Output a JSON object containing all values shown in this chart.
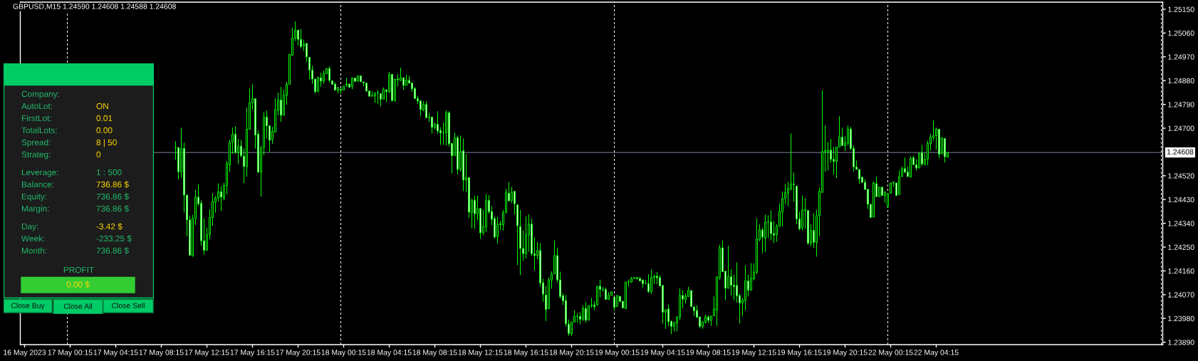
{
  "chart_data": [
    {
      "type": "candlestick",
      "title": "GBPUSD,M15 1.24590 1.24608 1.24588 1.24608",
      "color": "#00ff00",
      "categories": [
        null,
        "16 May 2023",
        null,
        null,
        null,
        null,
        null,
        null,
        null,
        null,
        null,
        null,
        null,
        null,
        null,
        null,
        null,
        "17 May 00:15",
        null,
        null,
        null,
        null,
        null,
        null,
        null,
        null,
        null,
        null,
        null,
        null,
        null,
        null,
        null,
        "17 May 04:15",
        null,
        null,
        null,
        null,
        null,
        null,
        null,
        null,
        null,
        null,
        null,
        null,
        null,
        null,
        null,
        "17 May 08:15",
        null,
        null,
        null,
        null,
        null,
        null,
        null,
        null,
        null,
        null,
        null,
        null,
        null,
        null,
        null,
        "17 May 12:15",
        null,
        null,
        null,
        null,
        null,
        null,
        null,
        null,
        null,
        null,
        null,
        null,
        null,
        null,
        null,
        "17 May 16:15",
        null,
        null,
        null,
        null,
        null,
        null,
        null,
        null,
        null,
        null,
        null,
        null,
        null,
        null,
        null,
        "17 May 20:15",
        null,
        null,
        null,
        null,
        null,
        null,
        null,
        null,
        null,
        null,
        null,
        null,
        null,
        null,
        null,
        "18 May 00:15",
        null,
        null,
        null,
        null,
        null,
        null,
        null,
        null,
        null,
        null,
        null,
        null,
        null,
        null,
        null,
        "18 May 04:15",
        null,
        null,
        null,
        null,
        null,
        null,
        null,
        null,
        null,
        null,
        null,
        null,
        null,
        null,
        null,
        "18 May 08:15",
        null,
        null,
        null,
        null,
        null,
        null,
        null,
        null,
        null,
        null,
        null,
        null,
        null,
        null,
        null,
        "18 May 12:15",
        null,
        null,
        null,
        null,
        null,
        null,
        null,
        null,
        null,
        null,
        null,
        null,
        null,
        null,
        null,
        "18 May 16:15",
        null,
        null,
        null,
        null,
        null,
        null,
        null,
        null,
        null,
        null,
        null,
        null,
        null,
        null,
        null,
        "18 May 20:15",
        null,
        null,
        null,
        null,
        null,
        null,
        null,
        null,
        null,
        null,
        null,
        null,
        null,
        null,
        null,
        "19 May 00:15",
        null,
        null,
        null,
        null,
        null,
        null,
        null,
        null,
        null,
        null,
        null,
        null,
        null,
        null,
        null,
        "19 May 04:15",
        null,
        null,
        null,
        null,
        null,
        null,
        null,
        null,
        null,
        null,
        null,
        null,
        null,
        null,
        null,
        "19 May 08:15",
        null,
        null,
        null,
        null,
        null,
        null,
        null,
        null,
        null,
        null,
        null,
        null,
        null,
        null,
        null,
        "19 May 12:15",
        null,
        null,
        null,
        null,
        null,
        null,
        null,
        null,
        null,
        null,
        null,
        null,
        null,
        null,
        null,
        "19 May 16:15",
        null,
        null,
        null,
        null,
        null,
        null,
        null,
        null,
        null,
        null,
        null,
        null,
        null,
        null,
        null,
        "19 May 20:15",
        null,
        null,
        null,
        null,
        null,
        null,
        null,
        null,
        null,
        null,
        null,
        null,
        null,
        null,
        null,
        "22 May 00:15",
        null,
        null,
        null,
        null,
        null,
        null,
        null,
        null,
        null,
        null,
        null,
        null,
        null,
        null,
        null,
        "22 May 04:15",
        null,
        null,
        null,
        null,
        null,
        null,
        null,
        null,
        null,
        null,
        null,
        null,
        null,
        null,
        null,
        null,
        null,
        null,
        null,
        null,
        null,
        null,
        null,
        null,
        null,
        null,
        null,
        null,
        null,
        null,
        null,
        null,
        null,
        null,
        null,
        null,
        null,
        null,
        null,
        null,
        null,
        null,
        null,
        null,
        null,
        null,
        null,
        null,
        null,
        null,
        null,
        null,
        null,
        null,
        null,
        null,
        null,
        null,
        null,
        null,
        null,
        null,
        null,
        null,
        null,
        null,
        null,
        null,
        null,
        null,
        null,
        null,
        null,
        null,
        null,
        null,
        null,
        null,
        null
      ],
      "ohlc": [
        null,
        null,
        null,
        null,
        null,
        null,
        null,
        null,
        null,
        null,
        null,
        null,
        null,
        null,
        null,
        null,
        null,
        null,
        null,
        null,
        null,
        null,
        null,
        null,
        null,
        null,
        null,
        null,
        null,
        null,
        null,
        null,
        null,
        null,
        null,
        null,
        null,
        null,
        null,
        null,
        null,
        null,
        null,
        null,
        null,
        null,
        null,
        null,
        null,
        null,
        null,
        null,
        null,
        null,
        [
          1.24627,
          1.24651,
          1.2458,
          1.24627
        ],
        [
          1.24627,
          1.2463,
          1.24506,
          1.24535
        ],
        [
          1.24535,
          1.24702,
          1.24513,
          1.24623
        ],
        [
          1.24623,
          1.24645,
          1.24381,
          1.24447
        ],
        [
          1.24447,
          1.24447,
          1.2429,
          1.24353
        ],
        [
          1.24353,
          1.24369,
          1.24216,
          1.24219
        ],
        [
          1.24216,
          1.24372,
          1.24214,
          1.24358
        ],
        [
          1.24358,
          1.24467,
          1.24333,
          1.24439
        ],
        [
          1.24439,
          1.24489,
          1.24405,
          1.24414
        ],
        [
          1.24416,
          1.24427,
          1.24255,
          1.24274
        ],
        [
          1.24274,
          1.24359,
          1.24222,
          1.24238
        ],
        [
          1.24238,
          1.24324,
          1.24236,
          1.24297
        ],
        [
          1.24297,
          1.24394,
          1.24279,
          1.24362
        ],
        [
          1.24362,
          1.24454,
          1.2433,
          1.24423
        ],
        [
          1.2442,
          1.24444,
          1.2438,
          1.24436
        ],
        [
          1.24436,
          1.24491,
          1.24423,
          1.24459
        ],
        [
          1.24459,
          1.24481,
          1.24387,
          1.24439
        ],
        [
          1.24436,
          1.24494,
          1.24427,
          1.24483
        ],
        [
          1.24482,
          1.24576,
          1.2445,
          1.24567
        ],
        [
          1.24561,
          1.24656,
          1.24535,
          1.24645
        ],
        [
          1.24647,
          1.24702,
          1.24603,
          1.24677
        ],
        [
          1.24677,
          1.24707,
          1.24603,
          1.24609
        ],
        [
          1.24609,
          1.24659,
          1.24565,
          1.24632
        ],
        [
          1.24632,
          1.24656,
          1.24589,
          1.24596
        ],
        [
          1.24594,
          1.24624,
          1.24492,
          1.24555
        ],
        [
          1.24555,
          1.24778,
          1.24517,
          1.24696
        ],
        [
          1.24696,
          1.2485,
          1.24694,
          1.24796
        ],
        [
          1.24796,
          1.24867,
          1.2477,
          1.24812
        ],
        [
          1.24812,
          1.24814,
          1.24623,
          1.24674
        ],
        [
          1.24677,
          1.24691,
          1.24529,
          1.24533
        ],
        [
          1.24533,
          1.24634,
          1.24441,
          1.24625
        ],
        [
          1.24627,
          1.24761,
          1.24598,
          1.24742
        ],
        [
          1.24742,
          1.24767,
          1.24661,
          1.24709
        ],
        [
          1.24709,
          1.24711,
          1.2461,
          1.24654
        ],
        [
          1.24657,
          1.24705,
          1.24641,
          1.24688
        ],
        [
          1.24685,
          1.24813,
          1.24685,
          1.24771
        ],
        [
          1.24768,
          1.24834,
          1.24749,
          1.24807
        ],
        [
          1.24807,
          1.24856,
          1.24724,
          1.24749
        ],
        [
          1.24749,
          1.24846,
          1.24747,
          1.24825
        ],
        [
          1.24825,
          1.24875,
          1.24789,
          1.24866
        ],
        [
          1.24866,
          1.24981,
          1.24862,
          1.24979
        ],
        [
          1.24976,
          1.2508,
          1.24973,
          1.25041
        ],
        [
          1.25041,
          1.25104,
          1.2503,
          1.25071
        ],
        [
          1.25071,
          1.25075,
          1.25013,
          1.25036
        ],
        [
          1.25036,
          1.25075,
          1.25003,
          1.25009
        ],
        [
          1.25011,
          1.25035,
          1.24992,
          1.25018
        ],
        [
          1.25021,
          1.25024,
          1.24951,
          1.2497
        ],
        [
          1.24968,
          1.24969,
          1.24886,
          1.2492
        ],
        [
          1.2492,
          1.24937,
          1.24867,
          1.24886
        ],
        [
          1.24886,
          1.2489,
          1.24832,
          1.24838
        ],
        [
          1.24838,
          1.24898,
          1.24838,
          1.24893
        ],
        [
          1.24891,
          1.2491,
          1.24857,
          1.24878
        ],
        [
          1.24878,
          1.24918,
          1.24868,
          1.24906
        ],
        [
          1.24906,
          1.24931,
          1.24902,
          1.24926
        ],
        [
          1.24926,
          1.24934,
          1.24873,
          1.24881
        ],
        [
          1.24879,
          1.24883,
          1.24865,
          1.24866
        ],
        [
          1.24867,
          1.24873,
          1.24843,
          1.24844
        ],
        [
          1.24844,
          1.24855,
          1.24832,
          1.24854
        ],
        [
          1.24848,
          1.24853,
          1.2483,
          1.24844
        ],
        [
          1.24844,
          1.24861,
          1.24844,
          1.24859
        ],
        [
          1.24863,
          1.24891,
          1.24856,
          1.24867
        ],
        [
          1.24867,
          1.24871,
          1.24853,
          1.24855
        ],
        [
          1.24858,
          1.24892,
          1.24848,
          1.2489
        ],
        [
          1.2489,
          1.24895,
          1.24876,
          1.24877
        ],
        [
          1.24878,
          1.24902,
          1.24877,
          1.24898
        ],
        [
          1.24898,
          1.24902,
          1.24875,
          1.24876
        ],
        [
          1.24875,
          1.24877,
          1.24859,
          1.24871
        ],
        [
          1.24871,
          1.24873,
          1.24838,
          1.2484
        ],
        [
          1.24841,
          1.24844,
          1.24818,
          1.24821
        ],
        [
          1.24821,
          1.2484,
          1.24821,
          1.24823
        ],
        [
          1.24822,
          1.24838,
          1.24796,
          1.24834
        ],
        [
          1.24834,
          1.24844,
          1.24792,
          1.24834
        ],
        [
          1.24831,
          1.24833,
          1.24783,
          1.2481
        ],
        [
          1.2481,
          1.24854,
          1.24808,
          1.24847
        ],
        [
          1.24845,
          1.2485,
          1.24799,
          1.24838
        ],
        [
          1.24838,
          1.24913,
          1.24832,
          1.24904
        ],
        [
          1.24904,
          1.24907,
          1.24799,
          1.24805
        ],
        [
          1.24803,
          1.24888,
          1.24803,
          1.24886
        ],
        [
          1.24886,
          1.24904,
          1.24859,
          1.24883
        ],
        [
          1.2488,
          1.24929,
          1.24877,
          1.24891
        ],
        [
          1.24891,
          1.24894,
          1.24845,
          1.24862
        ],
        [
          1.24862,
          1.24902,
          1.24859,
          1.24882
        ],
        [
          1.24881,
          1.24898,
          1.24868,
          1.2487
        ],
        [
          1.24871,
          1.24876,
          1.24837,
          1.24849
        ],
        [
          1.2485,
          1.24856,
          1.24808,
          1.24812
        ],
        [
          1.24812,
          1.24823,
          1.24792,
          1.24803
        ],
        [
          1.24804,
          1.24807,
          1.24745,
          1.2477
        ],
        [
          1.2477,
          1.24802,
          1.24764,
          1.2479
        ],
        [
          1.2479,
          1.24802,
          1.24737,
          1.2474
        ],
        [
          1.2474,
          1.24758,
          1.24724,
          1.24742
        ],
        [
          1.24742,
          1.24745,
          1.2468,
          1.24703
        ],
        [
          1.24703,
          1.24722,
          1.24694,
          1.24715
        ],
        [
          1.24715,
          1.24764,
          1.24679,
          1.24689
        ],
        [
          1.24691,
          1.24703,
          1.24637,
          1.24682
        ],
        [
          1.24682,
          1.24721,
          1.24637,
          1.24682
        ],
        [
          1.24682,
          1.24767,
          1.24634,
          1.24759
        ],
        [
          1.24758,
          1.24764,
          1.2463,
          1.24641
        ],
        [
          1.24642,
          1.24643,
          1.24529,
          1.24596
        ],
        [
          1.24596,
          1.24683,
          1.24594,
          1.24663
        ],
        [
          1.24664,
          1.24672,
          1.24524,
          1.24544
        ],
        [
          1.24544,
          1.24672,
          1.24535,
          1.24612
        ],
        [
          1.24615,
          1.24661,
          1.24462,
          1.24504
        ],
        [
          1.24504,
          1.24602,
          1.24459,
          1.24513
        ],
        [
          1.24513,
          1.24513,
          1.2436,
          1.24382
        ],
        [
          1.2438,
          1.24434,
          1.24321,
          1.24427
        ],
        [
          1.24427,
          1.24445,
          1.24319,
          1.24376
        ],
        [
          1.24376,
          1.24445,
          1.24351,
          1.24396
        ],
        [
          1.24396,
          1.24398,
          1.24281,
          1.24304
        ],
        [
          1.24304,
          1.24391,
          1.24295,
          1.24327
        ],
        [
          1.24327,
          1.2445,
          1.24308,
          1.24427
        ],
        [
          1.24427,
          1.24447,
          1.24375,
          1.24384
        ],
        [
          1.24385,
          1.24405,
          1.24333,
          1.24355
        ],
        [
          1.24358,
          1.24367,
          1.24282,
          1.24288
        ],
        [
          1.2429,
          1.24364,
          1.24263,
          1.24335
        ],
        [
          1.24335,
          1.2435,
          1.24315,
          1.24338
        ],
        [
          1.24335,
          1.24391,
          1.24313,
          1.2438
        ],
        [
          1.24382,
          1.24471,
          1.24376,
          1.24458
        ],
        [
          1.24454,
          1.24496,
          1.24423,
          1.24425
        ],
        [
          1.24427,
          1.24478,
          1.24416,
          1.24458
        ],
        [
          1.24461,
          1.24462,
          1.24373,
          1.24414
        ],
        [
          1.2441,
          1.24414,
          1.24182,
          1.24331
        ],
        [
          1.24328,
          1.24391,
          1.24144,
          1.24245
        ],
        [
          1.24245,
          1.24313,
          1.24198,
          1.24225
        ],
        [
          1.24225,
          1.24366,
          1.24207,
          1.24296
        ],
        [
          1.24296,
          1.24374,
          1.24232,
          1.24337
        ],
        [
          1.24337,
          1.24358,
          1.24216,
          1.24225
        ],
        [
          1.24225,
          1.24288,
          1.24162,
          1.24218
        ],
        [
          1.24218,
          1.24269,
          1.24204,
          1.24237
        ],
        [
          1.24237,
          1.24264,
          1.24101,
          1.24114
        ],
        [
          1.24115,
          1.2413,
          1.24043,
          1.24072
        ],
        [
          1.24069,
          1.24103,
          1.23971,
          1.24014
        ],
        [
          1.24017,
          1.24135,
          1.24014,
          1.24126
        ],
        [
          1.24126,
          1.24158,
          1.24093,
          1.24148
        ],
        [
          1.24149,
          1.24275,
          1.24144,
          1.24218
        ],
        [
          1.24218,
          1.24247,
          1.24117,
          1.24126
        ],
        [
          1.24126,
          1.24157,
          1.24054,
          1.24063
        ],
        [
          1.24066,
          1.24076,
          1.24031,
          1.24047
        ],
        [
          1.24048,
          1.24069,
          1.2395,
          1.2396
        ],
        [
          1.23959,
          1.23976,
          1.23914,
          1.23923
        ],
        [
          1.23923,
          1.23969,
          1.23915,
          1.23967
        ],
        [
          1.23966,
          1.24011,
          1.23964,
          1.23988
        ],
        [
          1.23988,
          1.24,
          1.23964,
          1.23988
        ],
        [
          1.23988,
          1.24003,
          1.23958,
          1.23977
        ],
        [
          1.23977,
          1.2403,
          1.23971,
          1.24018
        ],
        [
          1.24018,
          1.24042,
          1.23963,
          1.23974
        ],
        [
          1.23974,
          1.24032,
          1.23973,
          1.24029
        ],
        [
          1.24029,
          1.24058,
          1.2402,
          1.24031
        ],
        [
          1.24031,
          1.24045,
          1.24011,
          1.24025
        ],
        [
          1.24031,
          1.24107,
          1.24029,
          1.24102
        ],
        [
          1.24102,
          1.24127,
          1.2406,
          1.2409
        ],
        [
          1.2409,
          1.24099,
          1.24081,
          1.2409
        ],
        [
          1.2409,
          1.24097,
          1.24049,
          1.24052
        ],
        [
          1.24052,
          1.24079,
          1.24051,
          1.24067
        ],
        [
          1.24067,
          1.24084,
          1.24063,
          1.24081
        ],
        [
          1.24061,
          1.24063,
          1.24009,
          1.24022
        ],
        [
          1.24025,
          1.24069,
          1.24025,
          1.24067
        ],
        [
          1.24064,
          1.24069,
          1.24042,
          1.24044
        ],
        [
          1.24045,
          1.24047,
          1.24018,
          1.2402
        ],
        [
          1.24017,
          1.2412,
          1.24016,
          1.24118
        ],
        [
          1.24118,
          1.24127,
          1.24101,
          1.24118
        ],
        [
          1.24117,
          1.24137,
          1.24115,
          1.24131
        ],
        [
          1.24131,
          1.24138,
          1.24126,
          1.24135
        ],
        [
          1.24135,
          1.24138,
          1.24126,
          1.24132
        ],
        [
          1.24131,
          1.24138,
          1.24121,
          1.24122
        ],
        [
          1.24126,
          1.24127,
          1.24097,
          1.24112
        ],
        [
          1.24112,
          1.24126,
          1.24108,
          1.24112
        ],
        [
          1.24112,
          1.24148,
          1.24076,
          1.24082
        ],
        [
          1.24082,
          1.24165,
          1.24073,
          1.24135
        ],
        [
          1.24135,
          1.24146,
          1.2411,
          1.2414
        ],
        [
          1.2414,
          1.24156,
          1.2411,
          1.24134
        ],
        [
          1.24135,
          1.24144,
          1.24099,
          1.24103
        ],
        [
          1.24105,
          1.2411,
          1.23961,
          1.24004
        ],
        [
          1.24004,
          1.24018,
          1.23941,
          1.24013
        ],
        [
          1.24016,
          1.24033,
          1.2395,
          1.23968
        ],
        [
          1.2397,
          1.23973,
          1.23921,
          1.2395
        ],
        [
          1.2395,
          1.2397,
          1.23931,
          1.23965
        ],
        [
          1.23962,
          1.23989,
          1.23931,
          1.23986
        ],
        [
          1.23985,
          1.24094,
          1.23973,
          1.24067
        ],
        [
          1.24067,
          1.24087,
          1.24018,
          1.24053
        ],
        [
          1.24051,
          1.24075,
          1.24036,
          1.24065
        ],
        [
          1.24063,
          1.241,
          1.24058,
          1.24086
        ],
        [
          1.24086,
          1.2409,
          1.24024,
          1.24025
        ],
        [
          1.24024,
          1.24029,
          1.23989,
          1.24009
        ],
        [
          1.2401,
          1.2403,
          1.23982,
          1.23984
        ],
        [
          1.23986,
          1.23986,
          1.23944,
          1.2395
        ],
        [
          1.2395,
          1.23973,
          1.23941,
          1.23968
        ],
        [
          1.23966,
          1.23995,
          1.2396,
          1.23986
        ],
        [
          1.23986,
          1.23993,
          1.23962,
          1.23973
        ],
        [
          1.23973,
          1.23993,
          1.23952,
          1.23989
        ],
        [
          1.2399,
          1.24063,
          1.23989,
          1.24016
        ],
        [
          1.24012,
          1.24139,
          1.23952,
          1.24138
        ],
        [
          1.24135,
          1.24259,
          1.24126,
          1.24247
        ],
        [
          1.24247,
          1.24275,
          1.24153,
          1.24157
        ],
        [
          1.24159,
          1.24164,
          1.24049,
          1.24095
        ],
        [
          1.24094,
          1.24256,
          1.24092,
          1.24138
        ],
        [
          1.24138,
          1.24167,
          1.24067,
          1.24106
        ],
        [
          1.24106,
          1.24146,
          1.24049,
          1.24101
        ],
        [
          1.24105,
          1.24192,
          1.2404,
          1.24066
        ],
        [
          1.24067,
          1.24074,
          1.23962,
          1.24039
        ],
        [
          1.24039,
          1.24057,
          1.23989,
          1.24049
        ],
        [
          1.24047,
          1.24181,
          1.24011,
          1.24123
        ],
        [
          1.24122,
          1.24146,
          1.24063,
          1.24087
        ],
        [
          1.24087,
          1.24189,
          1.24085,
          1.24132
        ],
        [
          1.2413,
          1.24189,
          1.24124,
          1.24156
        ],
        [
          1.24155,
          1.24359,
          1.24148,
          1.24281
        ],
        [
          1.24279,
          1.24337,
          1.24272,
          1.24315
        ],
        [
          1.24315,
          1.24324,
          1.24227,
          1.24288
        ],
        [
          1.24284,
          1.24373,
          1.24232,
          1.24345
        ],
        [
          1.24345,
          1.2437,
          1.24284,
          1.24346
        ],
        [
          1.24345,
          1.24389,
          1.24276,
          1.24301
        ],
        [
          1.24301,
          1.24349,
          1.24265,
          1.24295
        ],
        [
          1.24297,
          1.24337,
          1.2427,
          1.24328
        ],
        [
          1.24328,
          1.24415,
          1.24326,
          1.24386
        ],
        [
          1.24384,
          1.24461,
          1.24329,
          1.24434
        ],
        [
          1.24434,
          1.24489,
          1.24413,
          1.24456
        ],
        [
          1.24454,
          1.24497,
          1.24405,
          1.24472
        ],
        [
          1.24468,
          1.2468,
          1.24463,
          1.24489
        ],
        [
          1.24489,
          1.24532,
          1.24421,
          1.24487
        ],
        [
          1.24481,
          1.24482,
          1.24337,
          1.24357
        ],
        [
          1.24357,
          1.24384,
          1.24313,
          1.24319
        ],
        [
          1.24324,
          1.24445,
          1.24313,
          1.24391
        ],
        [
          1.24391,
          1.24435,
          1.24319,
          1.24389
        ],
        [
          1.24389,
          1.24391,
          1.24259,
          1.24265
        ],
        [
          1.24265,
          1.24337,
          1.24254,
          1.24313
        ],
        [
          1.24313,
          1.24378,
          1.24246,
          1.24268
        ],
        [
          1.24268,
          1.24391,
          1.24214,
          1.24369
        ],
        [
          1.24369,
          1.24475,
          1.2429,
          1.24461
        ],
        [
          1.24457,
          1.24843,
          1.24457,
          1.24612
        ],
        [
          1.2461,
          1.2471,
          1.24535,
          1.24615
        ],
        [
          1.2461,
          1.24648,
          1.2454,
          1.24617
        ],
        [
          1.24617,
          1.24659,
          1.24569,
          1.24582
        ],
        [
          1.24582,
          1.24629,
          1.24524,
          1.24574
        ],
        [
          1.24574,
          1.24631,
          1.24511,
          1.24629
        ],
        [
          1.24628,
          1.24745,
          1.24624,
          1.24666
        ],
        [
          1.24666,
          1.24702,
          1.24632,
          1.24634
        ],
        [
          1.24634,
          1.2467,
          1.24614,
          1.24645
        ],
        [
          1.24643,
          1.2471,
          1.24634,
          1.24696
        ],
        [
          1.24696,
          1.24705,
          1.24616,
          1.24623
        ],
        [
          1.24623,
          1.24634,
          1.24535,
          1.24554
        ],
        [
          1.24554,
          1.24578,
          1.2454,
          1.24544
        ],
        [
          1.24544,
          1.24547,
          1.2449,
          1.24508
        ],
        [
          1.24515,
          1.24517,
          1.24492,
          1.24495
        ],
        [
          1.24495,
          1.24507,
          1.24464,
          1.24468
        ],
        [
          1.24469,
          1.24471,
          1.24394,
          1.24412
        ],
        [
          1.24412,
          1.24417,
          1.2436,
          1.24362
        ],
        [
          1.24364,
          1.24499,
          1.24362,
          1.24493
        ],
        [
          1.2449,
          1.24516,
          1.24438,
          1.24441
        ],
        [
          1.24441,
          1.24482,
          1.24438,
          1.24477
        ],
        [
          1.24477,
          1.24481,
          1.24443,
          1.24445
        ],
        [
          1.24445,
          1.24463,
          1.24418,
          1.24459
        ],
        [
          1.24403,
          1.24454,
          1.24403,
          1.24453
        ],
        [
          1.24454,
          1.24495,
          1.24454,
          1.24493
        ],
        [
          1.24493,
          1.24499,
          1.24479,
          1.24496
        ],
        [
          1.24493,
          1.24495,
          1.24444,
          1.24445
        ],
        [
          1.24449,
          1.2454,
          1.24447,
          1.24517
        ],
        [
          1.24517,
          1.24556,
          1.24515,
          1.24547
        ],
        [
          1.24547,
          1.24589,
          1.24531,
          1.24533
        ],
        [
          1.24534,
          1.24556,
          1.24516,
          1.24517
        ],
        [
          1.24515,
          1.24594,
          1.24513,
          1.24585
        ],
        [
          1.24588,
          1.24596,
          1.24558,
          1.24562
        ],
        [
          1.24561,
          1.24582,
          1.2454,
          1.24549
        ],
        [
          1.24549,
          1.24608,
          1.24547,
          1.24605
        ],
        [
          1.24607,
          1.24637,
          1.24558,
          1.24565
        ],
        [
          1.24562,
          1.24607,
          1.2456,
          1.24583
        ],
        [
          1.24584,
          1.24653,
          1.2456,
          1.24642
        ],
        [
          1.24642,
          1.24679,
          1.24616,
          1.24666
        ],
        [
          1.24664,
          1.24729,
          1.24653,
          1.24671
        ],
        [
          1.24672,
          1.24702,
          1.24618,
          1.24696
        ],
        [
          1.24696,
          1.24697,
          1.24587,
          1.24602
        ],
        [
          1.24603,
          1.24668,
          1.24602,
          1.24664
        ],
        [
          1.24661,
          1.24665,
          1.2457,
          1.24592
        ],
        [
          1.2459,
          1.24608,
          1.24588,
          1.24608
        ],
        null,
        null,
        null,
        null,
        null,
        null,
        null,
        null,
        null,
        null,
        null,
        null,
        null,
        null,
        null,
        null,
        null,
        null,
        null,
        null,
        null,
        null,
        null,
        null,
        null,
        null,
        null,
        null,
        null,
        null,
        null,
        null,
        null,
        null,
        null,
        null,
        null,
        null,
        null,
        null,
        null,
        null,
        null,
        null,
        null,
        null,
        null,
        null,
        null,
        null,
        null,
        null,
        null,
        null,
        null,
        null,
        null,
        null,
        null,
        null,
        null,
        null,
        null,
        null,
        null,
        null,
        null,
        null,
        null,
        null,
        null,
        null,
        null,
        null,
        null
      ],
      "ylim": [
        1.23881,
        1.25177
      ],
      "yticks": [
        {
          "value": 1.2389,
          "label": "1.23890"
        },
        {
          "value": 1.2398,
          "label": "1.23980"
        },
        {
          "value": 1.2407,
          "label": "1.24070"
        },
        {
          "value": 1.2416,
          "label": "1.24160"
        },
        {
          "value": 1.2425,
          "label": "1.24250"
        },
        {
          "value": 1.2434,
          "label": "1.24340"
        },
        {
          "value": 1.2443,
          "label": "1.24430"
        },
        {
          "value": 1.2452,
          "label": "1.24520"
        },
        {
          "value": 1.247,
          "label": "1.24700"
        },
        {
          "value": 1.2479,
          "label": "1.24790"
        },
        {
          "value": 1.2488,
          "label": "1.24880"
        },
        {
          "value": 1.2497,
          "label": "1.24970"
        },
        {
          "value": 1.2506,
          "label": "1.25060"
        },
        {
          "value": 1.2515,
          "label": "1.25150"
        }
      ],
      "ref_lines": [
        {
          "axis": "y",
          "value": 1.24608,
          "label": "1.24608",
          "color": "#778899",
          "line_style": "solid"
        }
      ]
    },
    {
      "type": "other",
      "annotations": [
        "Company:",
        "AutoLot:",
        "ON",
        "FirstLot:",
        "0.01",
        "TotalLots:",
        "0.00",
        "Spread:",
        "8 | 50",
        "Strateg:",
        "0",
        "Leverage:",
        "1 : 500",
        "Balance:",
        "736.86 $",
        "Equity:",
        "736.86 $",
        "Margin:",
        "736.86 $",
        "Day:",
        "-3.42 $",
        "Week:",
        "-233.25 $",
        "Month:",
        "736.86 $",
        "PROFIT",
        "0.00 $",
        "Close Buy",
        "Close All",
        "Close Sell"
      ],
      "colors": [
        "#22b86a",
        "#22b86a",
        "#ffd700",
        "#22b86a",
        "#ffd700",
        "#22b86a",
        "#ffd700",
        "#22b86a",
        "#ffd700",
        "#22b86a",
        "#ffd700",
        "#22b86a",
        "#22b86a",
        "#22b86a",
        "#ffd700",
        "#22b86a",
        "#22b86a",
        "#22b86a",
        "#22b86a",
        "#22b86a",
        "#ffd700",
        "#22b86a",
        "#22b86a",
        "#22b86a",
        "#22b86a",
        "#22b86a",
        "#ffd700",
        "#111111",
        "#111111",
        "#111111"
      ]
    }
  ]
}
